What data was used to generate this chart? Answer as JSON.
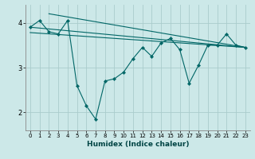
{
  "xlabel": "Humidex (Indice chaleur)",
  "background_color": "#cce8e8",
  "grid_color": "#aacccc",
  "line_color": "#006666",
  "line1_x": [
    0,
    1,
    2,
    3,
    4,
    5,
    6,
    7,
    8,
    9,
    10,
    11,
    12,
    13,
    14,
    15,
    16,
    17,
    18,
    19,
    20,
    21,
    22,
    23
  ],
  "line1_y": [
    3.9,
    4.05,
    3.8,
    3.75,
    4.05,
    2.6,
    2.15,
    1.85,
    2.7,
    2.75,
    2.9,
    3.2,
    3.45,
    3.25,
    3.55,
    3.65,
    3.4,
    2.65,
    3.05,
    3.5,
    3.5,
    3.75,
    3.5,
    3.45
  ],
  "line2_x": [
    0,
    23
  ],
  "line2_y": [
    3.9,
    3.45
  ],
  "line3_x": [
    0,
    23
  ],
  "line3_y": [
    3.78,
    3.45
  ],
  "line4_x": [
    2,
    23
  ],
  "line4_y": [
    4.2,
    3.45
  ],
  "ylim": [
    1.6,
    4.4
  ],
  "xlim": [
    -0.5,
    23.5
  ],
  "yticks": [
    2,
    3,
    4
  ],
  "xticks": [
    0,
    1,
    2,
    3,
    4,
    5,
    6,
    7,
    8,
    9,
    10,
    11,
    12,
    13,
    14,
    15,
    16,
    17,
    18,
    19,
    20,
    21,
    22,
    23
  ]
}
